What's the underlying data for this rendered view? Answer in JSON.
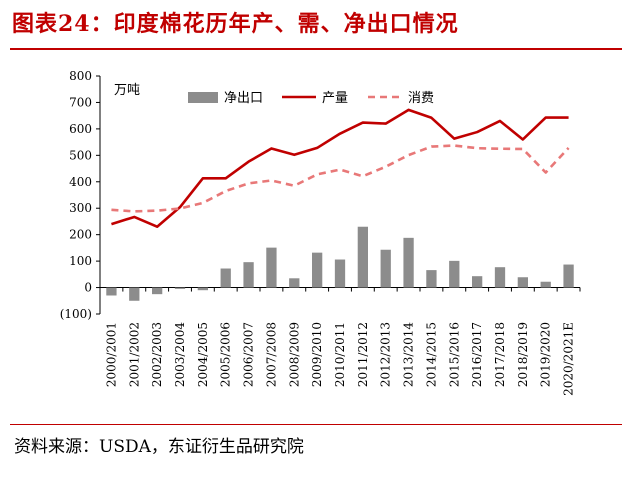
{
  "figure": {
    "title": "图表24：印度棉花历年产、需、净出口情况",
    "source": "资料来源：USDA，东证衍生品研究院"
  },
  "chart_data": {
    "type": "bar",
    "unit_label": "万吨",
    "categories": [
      "2000/2001",
      "2001/2002",
      "2002/2003",
      "2003/2004",
      "2004/2005",
      "2005/2006",
      "2006/2007",
      "2007/2008",
      "2008/2009",
      "2009/2010",
      "2010/2011",
      "2011/2012",
      "2012/2013",
      "2013/2014",
      "2014/2015",
      "2015/2016",
      "2016/2017",
      "2017/2018",
      "2018/2019",
      "2019/2020",
      "2020/2021E"
    ],
    "y_ticks": [
      "800",
      "700",
      "600",
      "500",
      "400",
      "300",
      "200",
      "100",
      "0",
      "(100)"
    ],
    "ylim": [
      -100,
      800
    ],
    "series": [
      {
        "name": "净出口",
        "kind": "bar",
        "color": "#8c8c8c",
        "values": [
          -30,
          -50,
          -25,
          -5,
          -10,
          72,
          96,
          151,
          35,
          132,
          106,
          230,
          143,
          188,
          66,
          101,
          43,
          77,
          39,
          22,
          87
        ]
      },
      {
        "name": "产量",
        "kind": "line",
        "color": "#c00000",
        "dash": "solid",
        "values": [
          240,
          267,
          230,
          304,
          413,
          413,
          476,
          526,
          502,
          528,
          582,
          624,
          620,
          672,
          642,
          563,
          588,
          630,
          560,
          643,
          643
        ]
      },
      {
        "name": "消费",
        "kind": "line",
        "color": "#e87878",
        "dash": "dashed",
        "values": [
          294,
          288,
          291,
          299,
          320,
          365,
          394,
          405,
          385,
          428,
          446,
          421,
          457,
          501,
          533,
          537,
          527,
          525,
          524,
          435,
          528
        ]
      }
    ],
    "legend_position": "top",
    "grid": false
  }
}
